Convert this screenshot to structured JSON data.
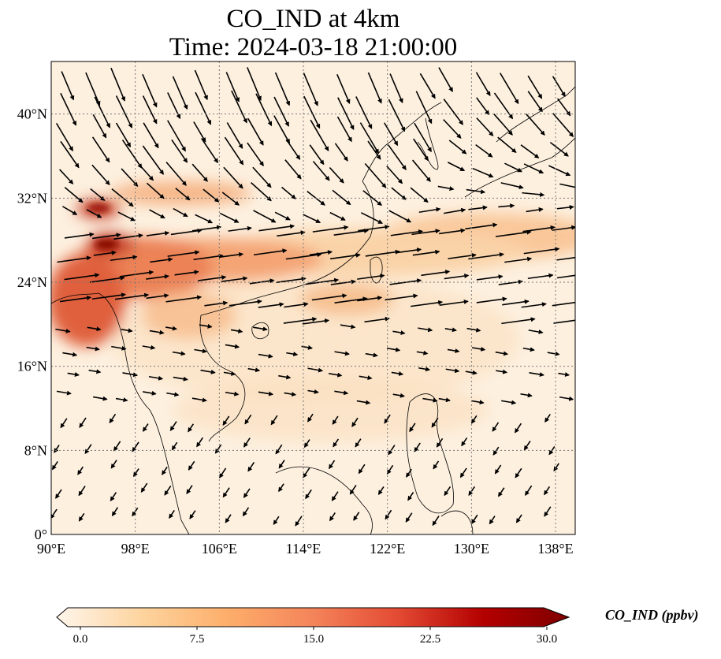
{
  "title": {
    "line1": "CO_IND at 4km",
    "line2": "Time: 2024-03-18 21:00:00"
  },
  "map": {
    "lon_range": [
      90,
      140
    ],
    "lat_range": [
      0,
      45
    ],
    "lon_ticks": [
      {
        "value": 90,
        "label": "90°E"
      },
      {
        "value": 98,
        "label": "98°E"
      },
      {
        "value": 106,
        "label": "106°E"
      },
      {
        "value": 114,
        "label": "114°E"
      },
      {
        "value": 122,
        "label": "122°E"
      },
      {
        "value": 130,
        "label": "130°E"
      },
      {
        "value": 138,
        "label": "138°E"
      }
    ],
    "lat_ticks": [
      {
        "value": 0,
        "label": "0°"
      },
      {
        "value": 8,
        "label": "8°N"
      },
      {
        "value": 16,
        "label": "16°N"
      },
      {
        "value": 24,
        "label": "24°N"
      },
      {
        "value": 32,
        "label": "32°N"
      },
      {
        "value": 40,
        "label": "40°N"
      }
    ]
  },
  "colorbar": {
    "label": "CO_IND (ppbv)",
    "min": 0.0,
    "max": 30.0,
    "ticks": [
      "0.0",
      "7.5",
      "15.0",
      "22.5",
      "30.0"
    ],
    "colors": [
      "#fff5eb",
      "#fdd49e",
      "#fdae6b",
      "#f4845a",
      "#e34a33",
      "#b30000",
      "#7f0000"
    ]
  }
}
